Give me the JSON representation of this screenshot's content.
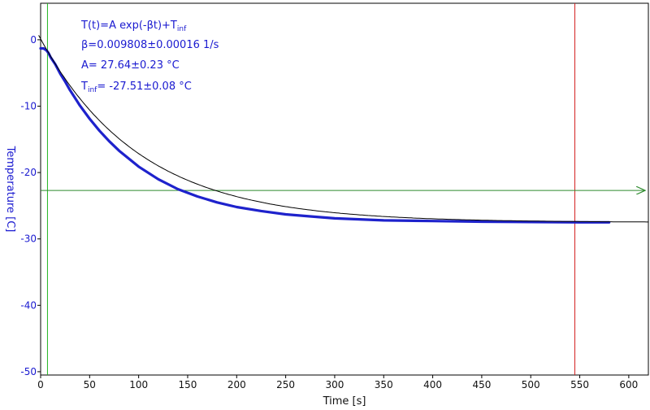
{
  "colors": {
    "axis": "#000000",
    "y_ticks": "#1a1ad0",
    "data": "#1e22cc",
    "fit": "#000000",
    "green_cursor": "#22b522",
    "horizontal_marker": "#2e8b2e",
    "red_cursor": "#d42020",
    "annotation": "#1a1ad0"
  },
  "chart_data": {
    "type": "line",
    "xlabel": "Time [s]",
    "ylabel": "Temperature [C]",
    "xlim": [
      0,
      620
    ],
    "ylim": [
      -50.5,
      5.5
    ],
    "x_ticks": [
      0,
      50,
      100,
      150,
      200,
      250,
      300,
      350,
      400,
      450,
      500,
      550,
      600
    ],
    "y_ticks": [
      0,
      -10,
      -20,
      -30,
      -40,
      -50
    ],
    "grid": false,
    "annotations": {
      "model": "T(t)=A exp(-βt)+T",
      "model_sub": "inf",
      "beta": "β=0.009808±0.00016 1/s",
      "amplitude": "A= 27.64±0.23 °C",
      "tinf_main": "T",
      "tinf_sub": "inf",
      "tinf_value": "= -27.51±0.08 °C"
    },
    "fit": {
      "A": 27.64,
      "beta": 0.009808,
      "T_inf": -27.51,
      "x_start": -2,
      "x_end": 620
    },
    "series": [
      {
        "x": [
          0,
          3,
          6,
          8,
          10,
          15,
          20,
          25,
          30,
          40,
          50,
          60,
          70,
          80,
          100,
          120,
          140,
          160,
          180,
          200,
          225,
          250,
          275,
          300,
          350,
          400,
          450,
          500,
          550,
          570,
          580
        ],
        "values": [
          -1.3,
          -1.3,
          -1.6,
          -2.0,
          -2.6,
          -3.7,
          -5.1,
          -6.3,
          -7.6,
          -9.9,
          -11.9,
          -13.7,
          -15.3,
          -16.7,
          -19.1,
          -21.0,
          -22.5,
          -23.6,
          -24.5,
          -25.2,
          -25.8,
          -26.3,
          -26.6,
          -26.9,
          -27.2,
          -27.3,
          -27.4,
          -27.45,
          -27.5,
          -27.5,
          -27.5
        ]
      }
    ],
    "markers": {
      "green_vertical_x": 7,
      "red_vertical_x": 545,
      "horizontal_y": -22.7
    }
  }
}
